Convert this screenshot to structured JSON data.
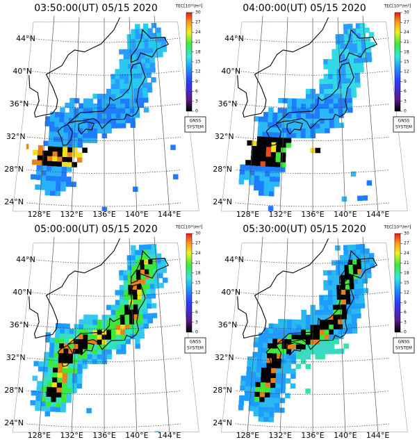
{
  "panels": [
    {
      "title": "03:50:00(UT) 05/15 2020"
    },
    {
      "title": "04:00:00(UT) 05/15 2020"
    },
    {
      "title": "05:00:00(UT) 05/15 2020"
    },
    {
      "title": "05:30:00(UT) 05/15 2020"
    }
  ],
  "map": {
    "lat_labels": [
      "44°N",
      "40°N",
      "36°N",
      "32°N",
      "28°N",
      "24°N"
    ],
    "lon_labels": [
      "128°E",
      "132°E",
      "136°E",
      "140°E",
      "144°E"
    ]
  },
  "colorbar": {
    "label": "TEC[10¹⁶/m²]",
    "range": [
      0,
      30
    ],
    "ticks": [
      0,
      3,
      6,
      9,
      12,
      15,
      18,
      21,
      24,
      27,
      30
    ]
  },
  "system_label": [
    "GNSS",
    "SYSTEM"
  ]
}
